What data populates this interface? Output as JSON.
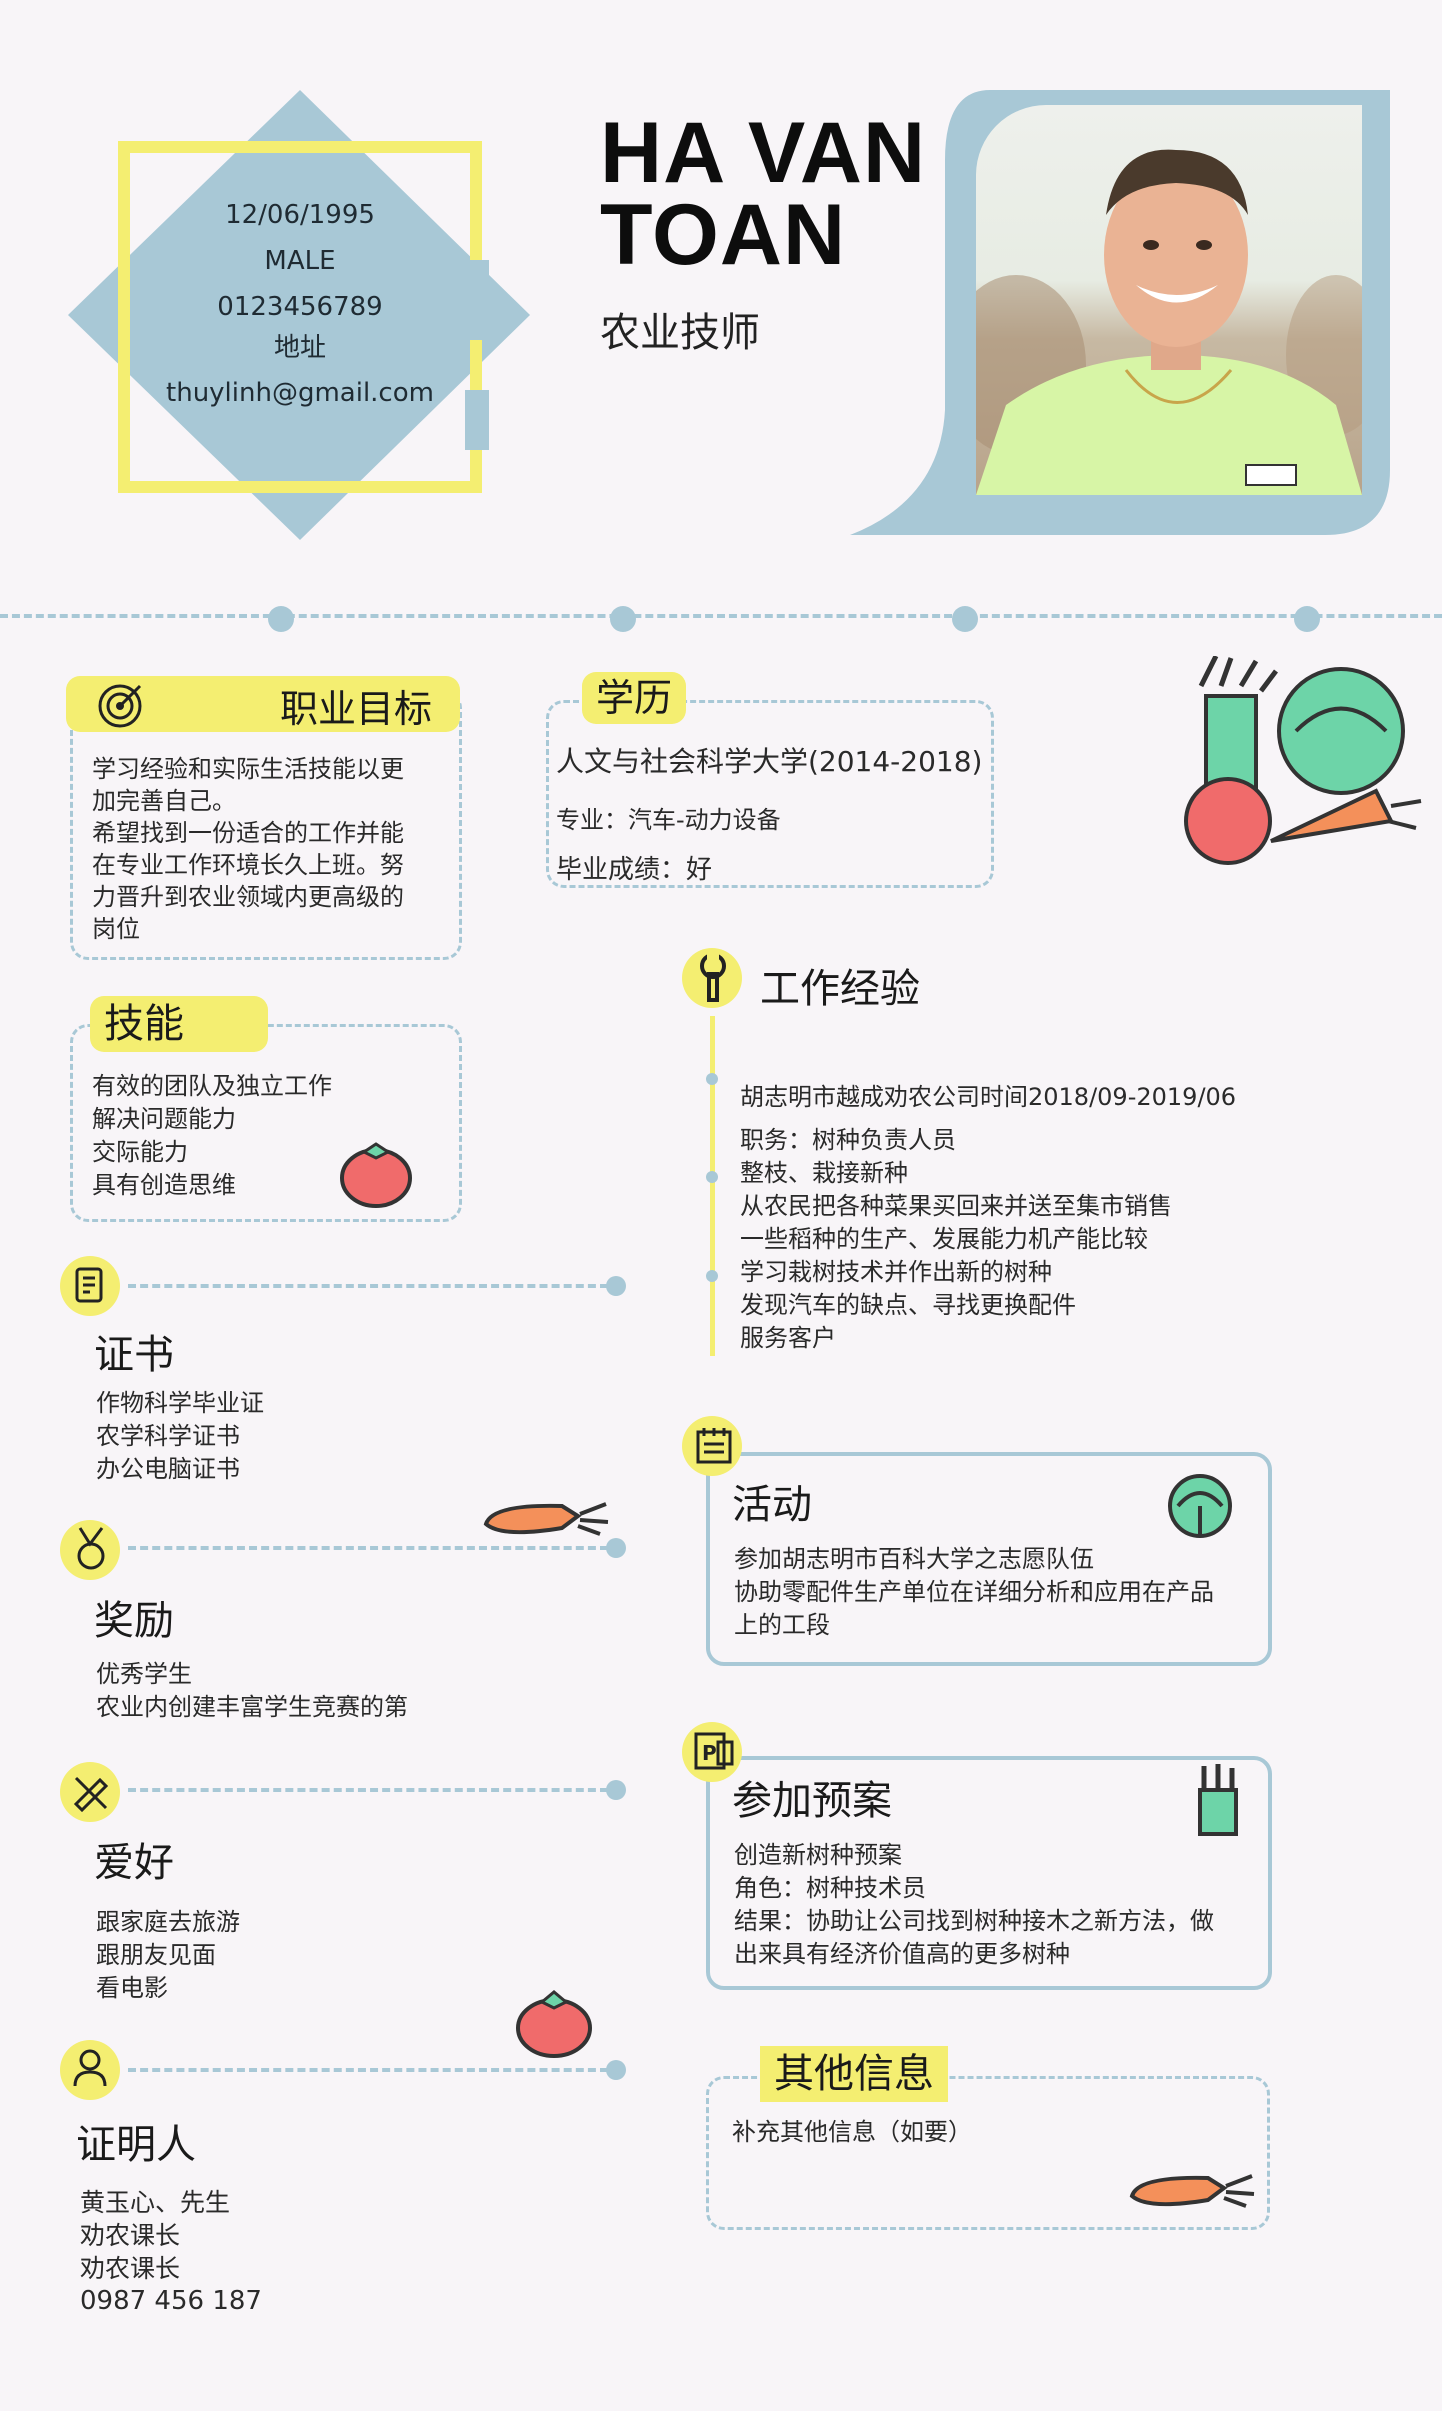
{
  "colors": {
    "accent_yellow": "#f4ee71",
    "accent_blue": "#a8c8d6",
    "background": "#f8f5f8"
  },
  "header": {
    "name_line1": "HA VAN",
    "name_line2": "TOAN",
    "job_title": "农业技师",
    "photo_alt": "smiling-man-portrait"
  },
  "info": {
    "dob": "12/06/1995",
    "gender": "MALE",
    "phone": "0123456789",
    "address": "地址",
    "email": "thuylinh@gmail.com"
  },
  "objective": {
    "title": "职业目标",
    "lines": [
      "学习经验和实际生活技能以更",
      "加完善自己。",
      "希望找到一份适合的工作并能",
      "在专业工作环境长久上班。努",
      "力晋升到农业领域内更高级的",
      "岗位"
    ]
  },
  "education": {
    "title": "学历",
    "school": "人文与社会科学大学(2014-2018)",
    "major": "专业：汽车-动力设备",
    "grade": "毕业成绩：好"
  },
  "skills": {
    "title": "技能",
    "items": [
      "有效的团队及独立工作",
      "解决问题能力",
      "交际能力",
      "具有创造思维"
    ]
  },
  "experience": {
    "title": "工作经验",
    "lines": [
      "胡志明市越成劝农公司时间2018/09-2019/06",
      "职务：树种负责人员",
      "整枝、栽接新种",
      "从农民把各种菜果买回来并送至集市销售",
      "一些稻种的生产、发展能力机产能比较",
      "学习栽树技术并作出新的树种",
      "发现汽车的缺点、寻找更换配件",
      "服务客户"
    ]
  },
  "certificates": {
    "title": "证书",
    "items": [
      "作物科学毕业证",
      "农学科学证书",
      "办公电脑证书"
    ]
  },
  "awards": {
    "title": "奖励",
    "items": [
      "优秀学生",
      "农业内创建丰富学生竞赛的第"
    ]
  },
  "hobbies": {
    "title": "爱好",
    "items": [
      "跟家庭去旅游",
      "跟朋友见面",
      "看电影"
    ]
  },
  "references": {
    "title": "证明人",
    "items": [
      "黄玉心、先生",
      "劝农课长",
      "劝农课长",
      "0987 456 187"
    ]
  },
  "activities": {
    "title": "活动",
    "lines": [
      "参加胡志明市百科大学之志愿队伍",
      "协助零配件生产单位在详细分析和应用在产品",
      "上的工段"
    ]
  },
  "projects": {
    "title": "参加预案",
    "lines": [
      "创造新树种预案",
      "角色：树种技术员",
      "结果：协助让公司找到树种接木之新方法，做",
      "出来具有经济价值高的更多树种"
    ]
  },
  "other": {
    "title": "其他信息",
    "text": "补充其他信息（如要）"
  }
}
